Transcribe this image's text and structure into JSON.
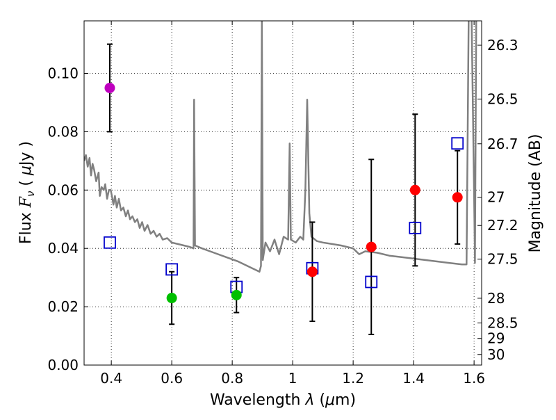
{
  "chart_data": {
    "type": "scatter",
    "xlabel_prefix": "Wavelength ",
    "xlabel_symbol": "λ",
    "xlabel_unit_open": " (",
    "xlabel_unit_mu": "μ",
    "xlabel_unit_close": "m)",
    "ylabel_prefix": "Flux ",
    "ylabel_symbol": "F",
    "ylabel_subscript": "ν",
    "ylabel_unit_open": " ( ",
    "ylabel_unit_mu": "μ",
    "ylabel_unit_close": "Jy )",
    "y2label": "Magnitude (AB)",
    "xlim": [
      0.31,
      1.625
    ],
    "ylim": [
      0.0,
      0.118
    ],
    "grid": true,
    "xticks": [
      0.4,
      0.6,
      0.8,
      1.0,
      1.2,
      1.4,
      1.6
    ],
    "xtick_labels": [
      "0.4",
      "0.6",
      "0.8",
      "1",
      "1.2",
      "1.4",
      "1.6"
    ],
    "yticks": [
      0.0,
      0.02,
      0.04,
      0.06,
      0.08,
      0.1
    ],
    "ytick_labels": [
      "0.00",
      "0.02",
      "0.04",
      "0.06",
      "0.08",
      "0.10"
    ],
    "mag_ticks": [
      {
        "mag": 26.3,
        "label": "26.3"
      },
      {
        "mag": 26.5,
        "label": "26.5"
      },
      {
        "mag": 26.7,
        "label": "26.7"
      },
      {
        "mag": 27.0,
        "label": "27"
      },
      {
        "mag": 27.2,
        "label": "27.2"
      },
      {
        "mag": 27.5,
        "label": "27.5"
      },
      {
        "mag": 28.0,
        "label": "28"
      },
      {
        "mag": 28.5,
        "label": "28.5"
      },
      {
        "mag": 29.0,
        "label": "29"
      },
      {
        "mag": 30.0,
        "label": "30"
      }
    ],
    "observed": [
      {
        "x": 0.395,
        "y": 0.095,
        "err_low": 0.015,
        "err_high": 0.015,
        "color": "#bf00bf"
      },
      {
        "x": 0.6,
        "y": 0.023,
        "err_low": 0.009,
        "err_high": 0.009,
        "color": "#00bf00"
      },
      {
        "x": 0.814,
        "y": 0.024,
        "err_low": 0.006,
        "err_high": 0.006,
        "color": "#00bf00"
      },
      {
        "x": 1.065,
        "y": 0.032,
        "err_low": 0.017,
        "err_high": 0.017,
        "color": "#ff0000"
      },
      {
        "x": 1.26,
        "y": 0.0405,
        "err_low": 0.03,
        "err_high": 0.03,
        "color": "#ff0000"
      },
      {
        "x": 1.405,
        "y": 0.06,
        "err_low": 0.026,
        "err_high": 0.026,
        "color": "#ff0000"
      },
      {
        "x": 1.545,
        "y": 0.0575,
        "err_low": 0.016,
        "err_high": 0.016,
        "color": "#ff0000"
      }
    ],
    "model_points": [
      {
        "x": 0.395,
        "y": 0.042
      },
      {
        "x": 0.6,
        "y": 0.0328
      },
      {
        "x": 0.814,
        "y": 0.0268
      },
      {
        "x": 1.065,
        "y": 0.0332
      },
      {
        "x": 1.26,
        "y": 0.0285
      },
      {
        "x": 1.405,
        "y": 0.047
      },
      {
        "x": 1.545,
        "y": 0.076
      }
    ],
    "model_points_color": "#0000cc",
    "spectrum_color": "#808080",
    "spectrum": [
      [
        0.31,
        0.07
      ],
      [
        0.316,
        0.072
      ],
      [
        0.322,
        0.068
      ],
      [
        0.328,
        0.071
      ],
      [
        0.333,
        0.065
      ],
      [
        0.338,
        0.069
      ],
      [
        0.343,
        0.067
      ],
      [
        0.35,
        0.063
      ],
      [
        0.358,
        0.066
      ],
      [
        0.362,
        0.058
      ],
      [
        0.368,
        0.061
      ],
      [
        0.375,
        0.06
      ],
      [
        0.38,
        0.062
      ],
      [
        0.386,
        0.057
      ],
      [
        0.392,
        0.06
      ],
      [
        0.398,
        0.06
      ],
      [
        0.402,
        0.058
      ],
      [
        0.407,
        0.055
      ],
      [
        0.412,
        0.058
      ],
      [
        0.418,
        0.054
      ],
      [
        0.425,
        0.057
      ],
      [
        0.432,
        0.053
      ],
      [
        0.44,
        0.054
      ],
      [
        0.448,
        0.051
      ],
      [
        0.455,
        0.053
      ],
      [
        0.462,
        0.05
      ],
      [
        0.47,
        0.051
      ],
      [
        0.478,
        0.049
      ],
      [
        0.486,
        0.05
      ],
      [
        0.494,
        0.047
      ],
      [
        0.502,
        0.049
      ],
      [
        0.51,
        0.046
      ],
      [
        0.52,
        0.048
      ],
      [
        0.53,
        0.045
      ],
      [
        0.54,
        0.046
      ],
      [
        0.55,
        0.044
      ],
      [
        0.56,
        0.045
      ],
      [
        0.57,
        0.043
      ],
      [
        0.585,
        0.0435
      ],
      [
        0.6,
        0.042
      ],
      [
        0.62,
        0.0415
      ],
      [
        0.64,
        0.041
      ],
      [
        0.66,
        0.0405
      ],
      [
        0.672,
        0.04
      ],
      [
        0.674,
        0.091
      ],
      [
        0.677,
        0.041
      ],
      [
        0.7,
        0.04
      ],
      [
        0.74,
        0.0385
      ],
      [
        0.78,
        0.037
      ],
      [
        0.82,
        0.0355
      ],
      [
        0.86,
        0.0335
      ],
      [
        0.89,
        0.032
      ],
      [
        0.895,
        0.034
      ],
      [
        0.898,
        0.118
      ],
      [
        0.901,
        0.036
      ],
      [
        0.91,
        0.042
      ],
      [
        0.925,
        0.039
      ],
      [
        0.94,
        0.043
      ],
      [
        0.955,
        0.038
      ],
      [
        0.97,
        0.044
      ],
      [
        0.985,
        0.043
      ],
      [
        0.99,
        0.076
      ],
      [
        0.994,
        0.043
      ],
      [
        1.01,
        0.042
      ],
      [
        1.025,
        0.044
      ],
      [
        1.035,
        0.043
      ],
      [
        1.042,
        0.06
      ],
      [
        1.048,
        0.091
      ],
      [
        1.055,
        0.052
      ],
      [
        1.062,
        0.044
      ],
      [
        1.08,
        0.0425
      ],
      [
        1.1,
        0.042
      ],
      [
        1.13,
        0.0415
      ],
      [
        1.16,
        0.041
      ],
      [
        1.18,
        0.0405
      ],
      [
        1.2,
        0.04
      ],
      [
        1.22,
        0.038
      ],
      [
        1.24,
        0.039
      ],
      [
        1.28,
        0.0385
      ],
      [
        1.32,
        0.0375
      ],
      [
        1.36,
        0.037
      ],
      [
        1.4,
        0.0365
      ],
      [
        1.44,
        0.036
      ],
      [
        1.48,
        0.0355
      ],
      [
        1.52,
        0.035
      ],
      [
        1.56,
        0.0345
      ],
      [
        1.575,
        0.0345
      ],
      [
        1.582,
        0.118
      ]
    ],
    "spectrum_right": [
      [
        1.592,
        0.118
      ],
      [
        1.6,
        0.06
      ],
      [
        1.603,
        0.035
      ],
      [
        1.607,
        0.118
      ]
    ]
  }
}
